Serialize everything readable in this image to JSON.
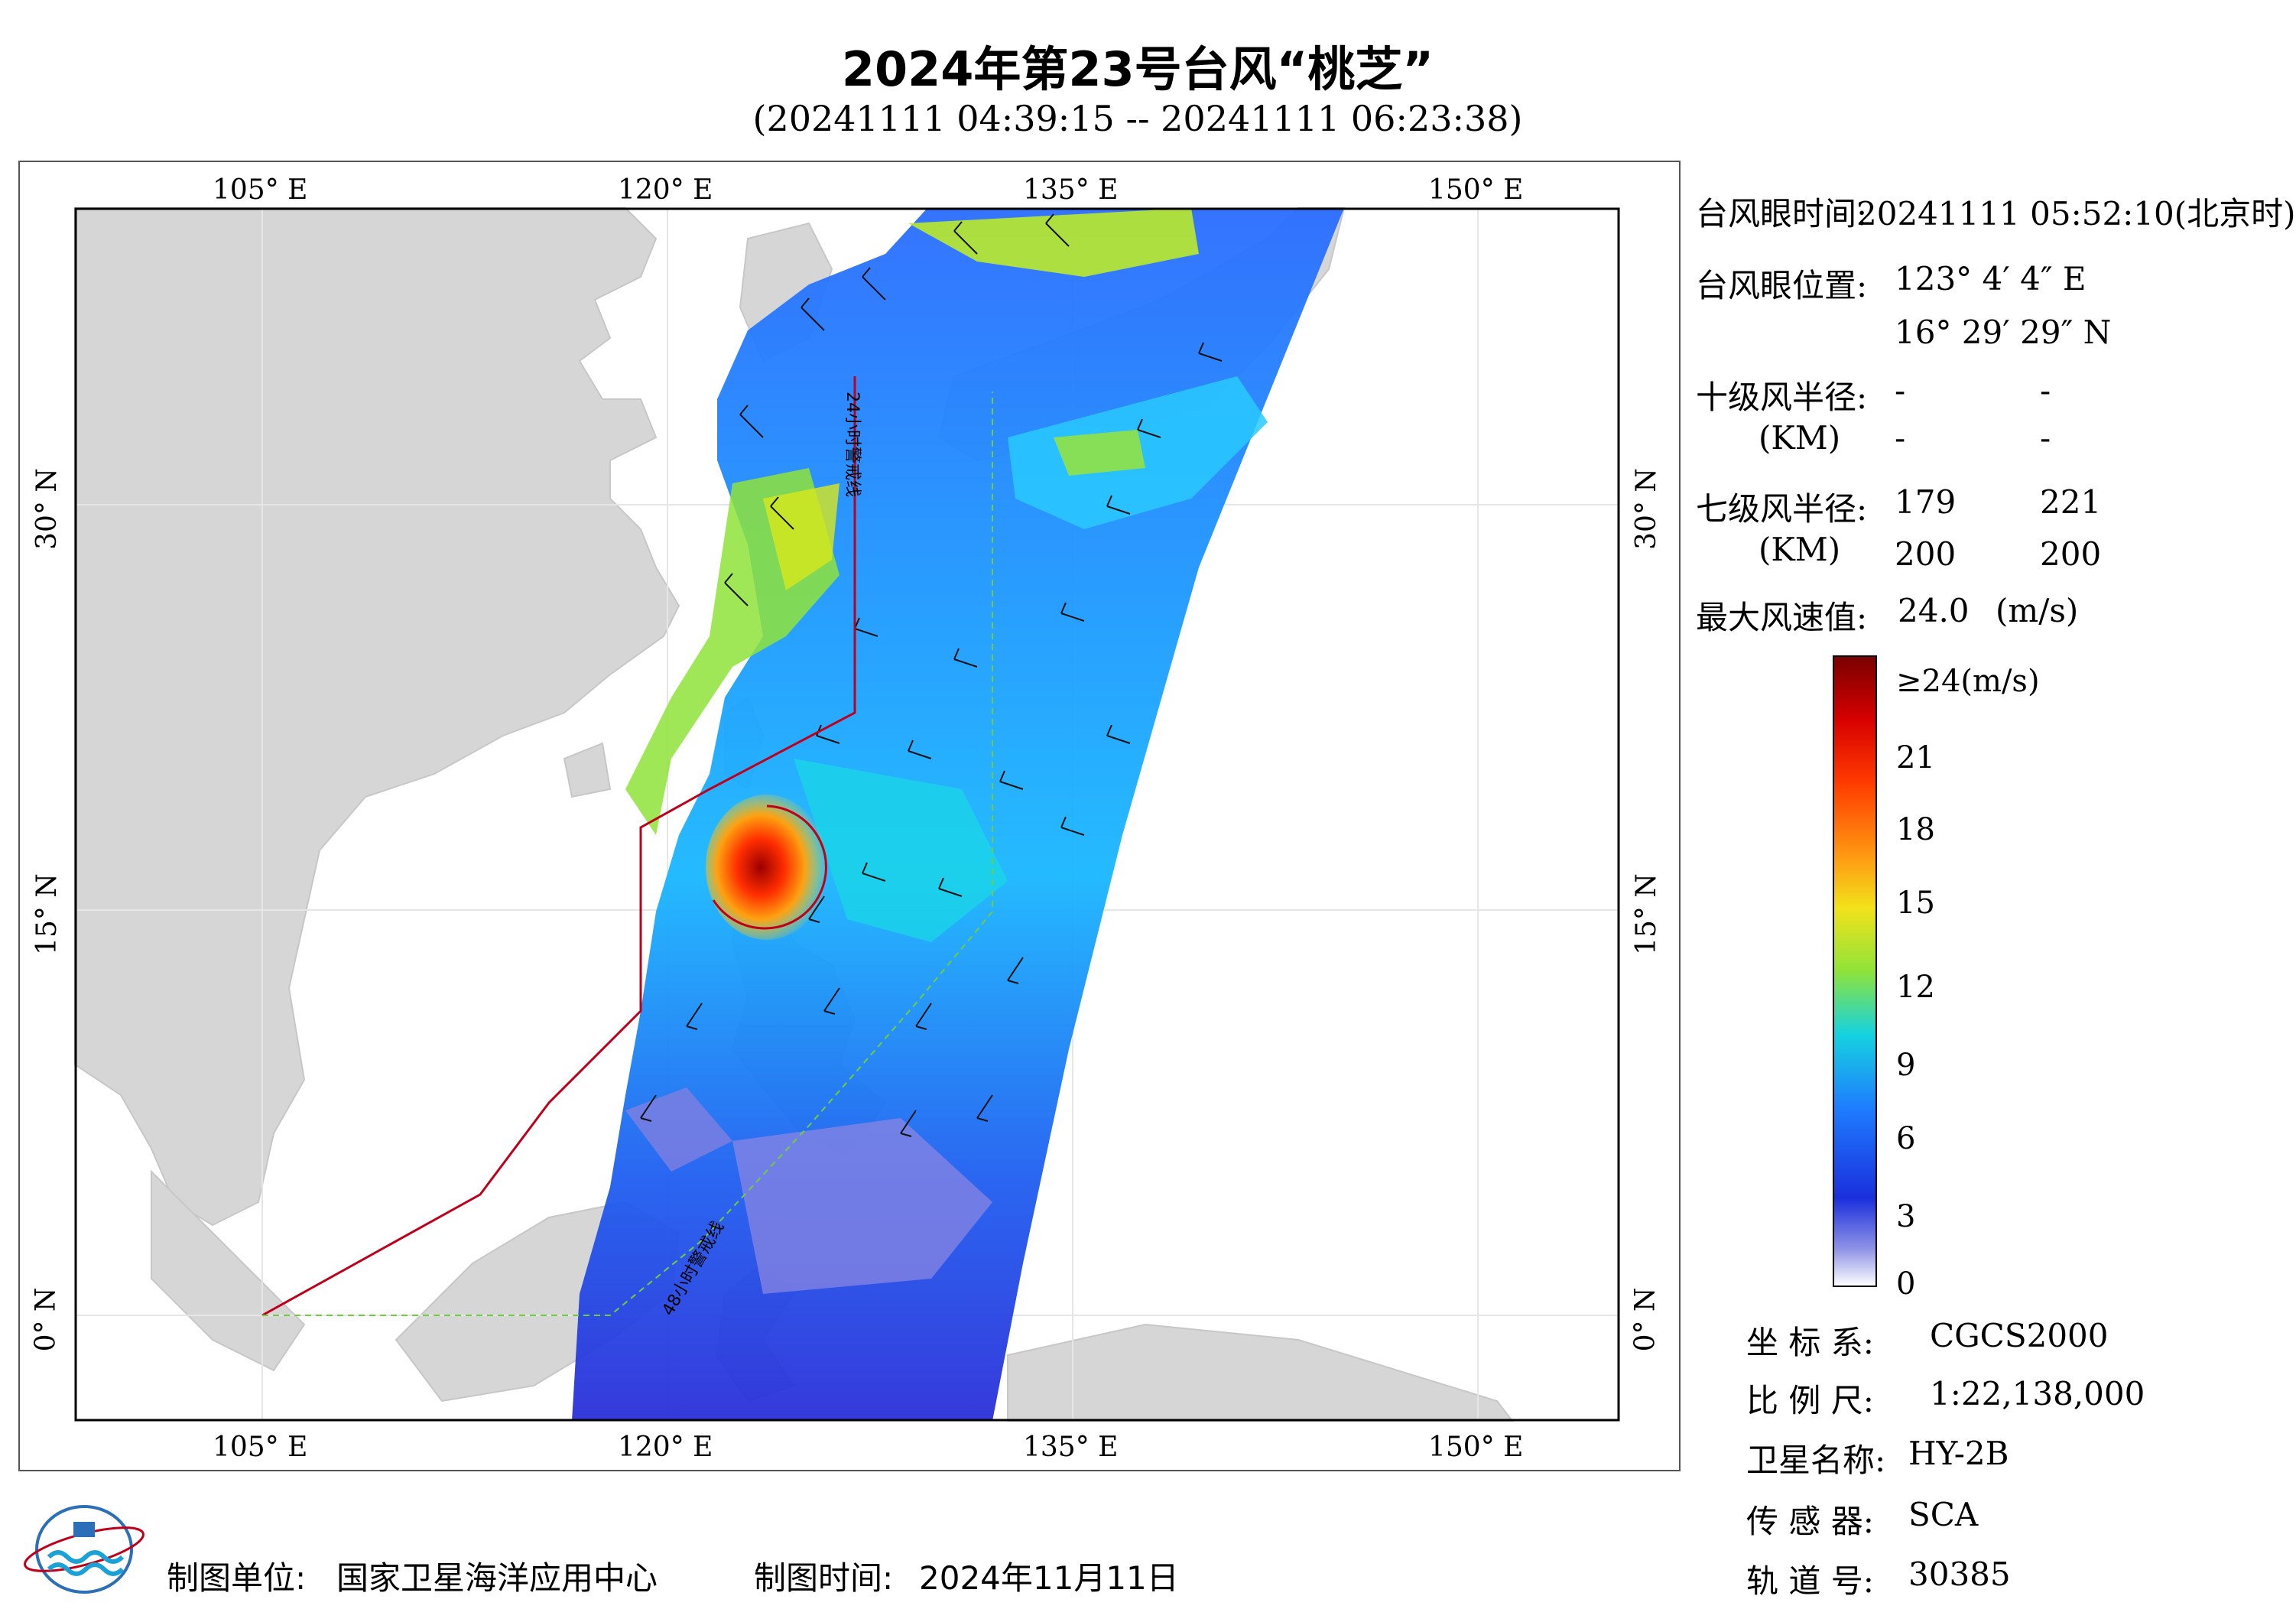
{
  "header": {
    "title": "2024年第23号台风“桃芝”",
    "subtitle": "(20241111 04:39:15 -- 20241111 06:23:38)"
  },
  "map": {
    "lon_ticks": [
      {
        "value": 105,
        "label": "105° E"
      },
      {
        "value": 120,
        "label": "120° E"
      },
      {
        "value": 135,
        "label": "135° E"
      },
      {
        "value": 150,
        "label": "150° E"
      }
    ],
    "lat_ticks": [
      {
        "value": 30,
        "label": "30° N"
      },
      {
        "value": 15,
        "label": "15° N"
      },
      {
        "value": 0,
        "label": "0° N"
      }
    ],
    "lon_range": [
      98.1,
      155.3
    ],
    "lat_range": [
      -3.8,
      41.1
    ],
    "swath_color_hex": [
      "#0b2fd6",
      "#1f8fff",
      "#19c7ff",
      "#9ee62d",
      "#e8e820",
      "#ff9b12",
      "#e51a1a"
    ],
    "warning_line_24h": "24小时警戒线",
    "warning_line_48h": "48小时警戒线",
    "typhoon_center": {
      "lon": 123.07,
      "lat": 16.49
    }
  },
  "info": {
    "eye_time_label": "台风眼时间:",
    "eye_time_value": "20241111 05:52:10(北京时)",
    "eye_pos_label": "台风眼位置:",
    "eye_pos_lon": "123° 4′ 4″ E",
    "eye_pos_lat": "16° 29′ 29″ N",
    "r10_label": "十级风半径:",
    "r10_unit": "(KM)",
    "r10_values": [
      "-",
      "-",
      "-",
      "-"
    ],
    "r7_label": "七级风半径:",
    "r7_unit": "(KM)",
    "r7_values": [
      "179",
      "221",
      "200",
      "200"
    ],
    "max_wind_label": "最大风速值:",
    "max_wind_value": "24.0",
    "max_wind_unit": "(m/s)"
  },
  "colorbar": {
    "max_label": "≥24(m/s)",
    "labels": [
      "21",
      "18",
      "15",
      "12",
      "9",
      "6",
      "3",
      "0"
    ],
    "stops": [
      "#7a0000",
      "#d60000",
      "#ff3a00",
      "#ff9b12",
      "#f2e21b",
      "#8fe33a",
      "#16d2e0",
      "#1e7bff",
      "#1a2fdc",
      "#8e92e6",
      "#ffffff"
    ]
  },
  "meta": {
    "coord_label": "坐 标 系:",
    "coord_value": "CGCS2000",
    "scale_label": "比 例 尺:",
    "scale_value": "1:22,138,000",
    "sat_label": "卫星名称:",
    "sat_value": "HY-2B",
    "sensor_label": "传 感 器:",
    "sensor_value": "SCA",
    "orbit_label": "轨 道 号:",
    "orbit_value": "30385"
  },
  "footer": {
    "org_label": "制图单位:",
    "org_value": "国家卫星海洋应用中心",
    "date_label": "制图时间:",
    "date_value": "2024年11月11日"
  }
}
